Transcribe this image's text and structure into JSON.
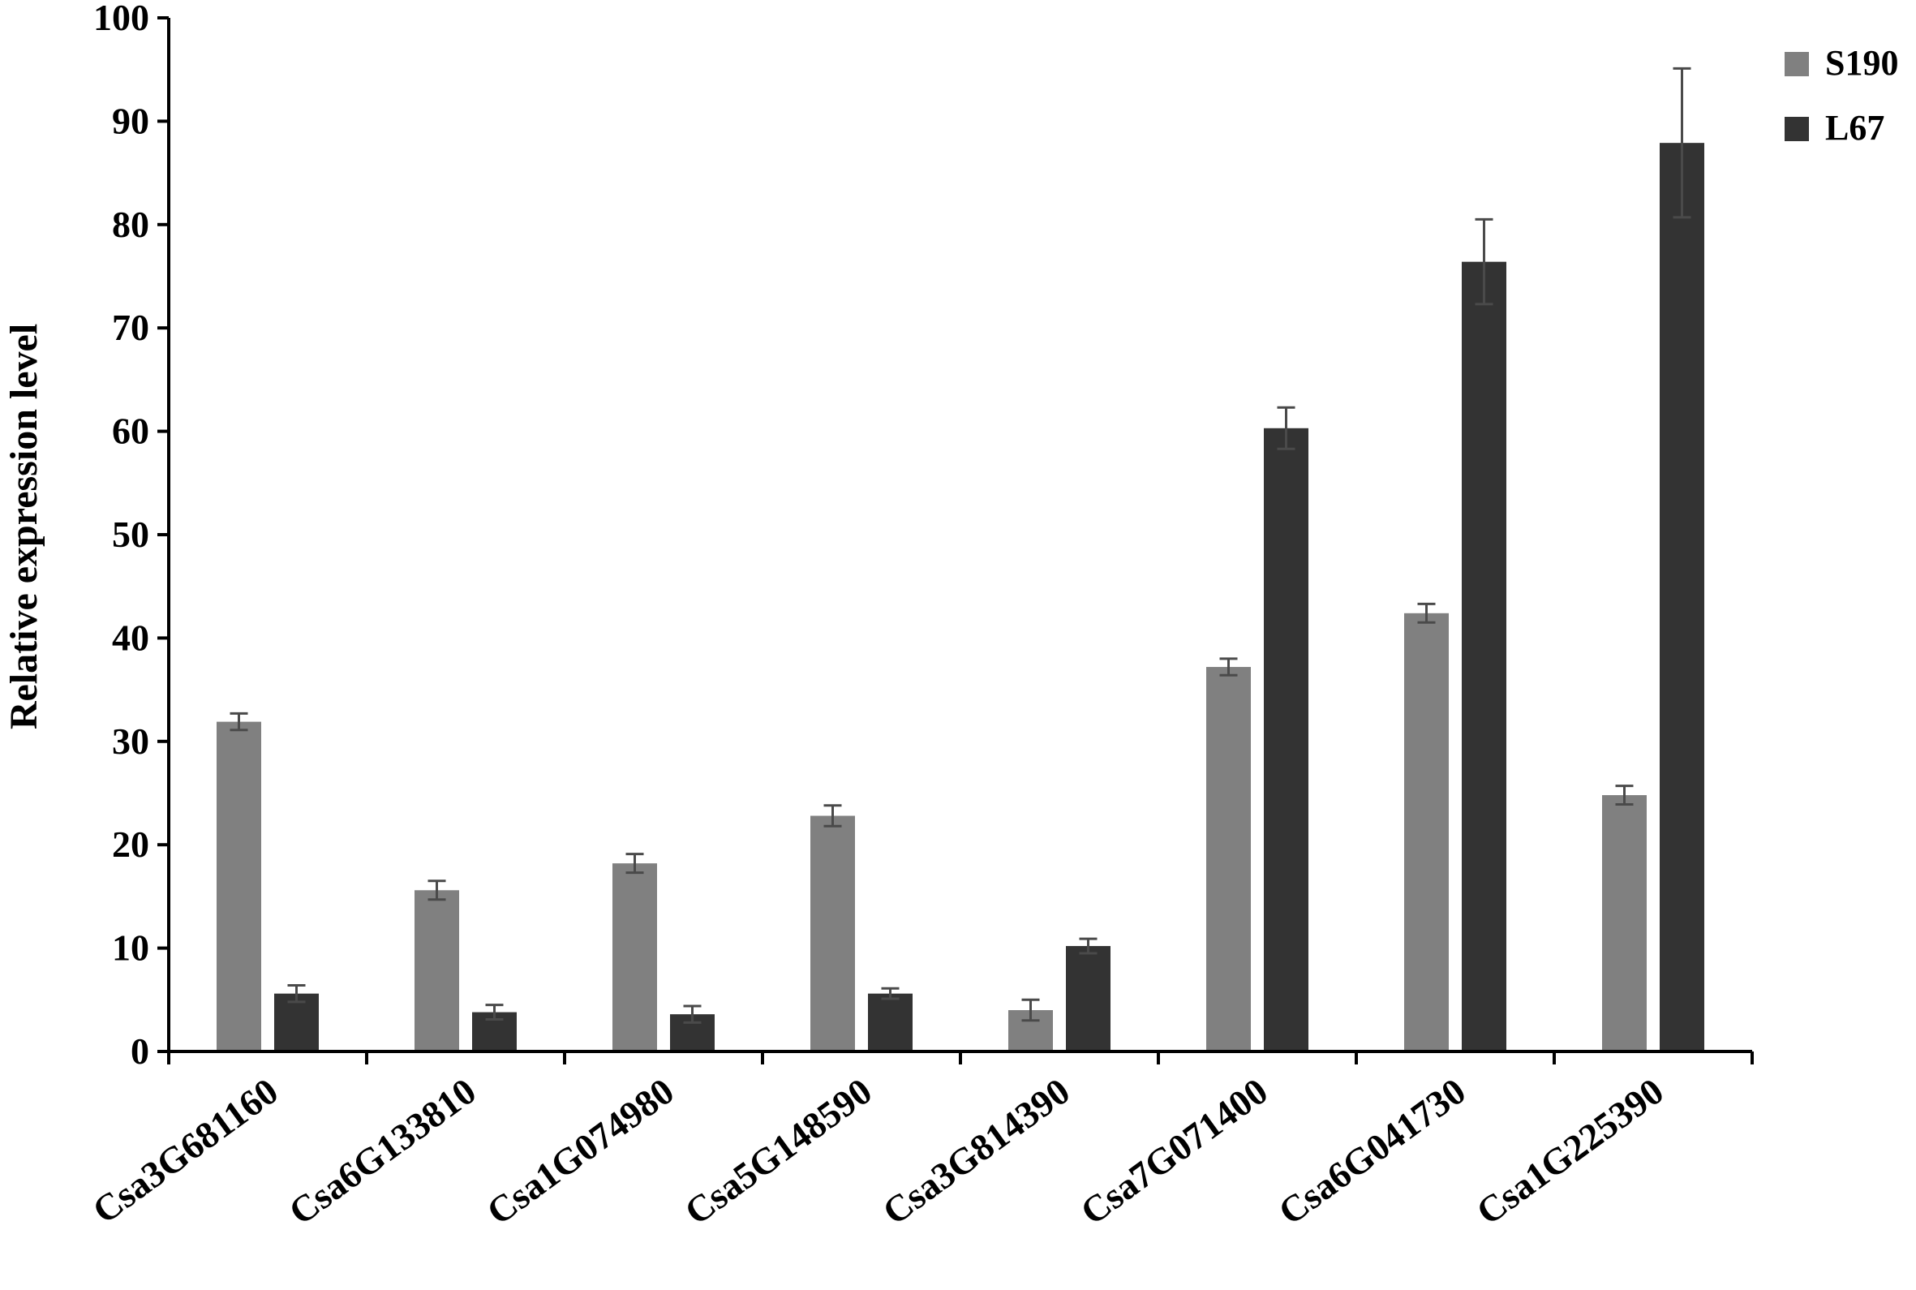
{
  "chart_data": {
    "type": "bar",
    "ylabel": "Relative expression level",
    "xlabel": "",
    "ylim": [
      0,
      100
    ],
    "yticks": [
      0,
      10,
      20,
      30,
      40,
      50,
      60,
      70,
      80,
      90,
      100
    ],
    "categories": [
      "Csa3G681160",
      "Csa6G133810",
      "Csa1G074980",
      "Csa5G148590",
      "Csa3G814390",
      "Csa7G071400",
      "Csa6G041730",
      "Csa1G225390"
    ],
    "series": [
      {
        "name": "S190",
        "color": "#808080",
        "values": [
          31.9,
          15.6,
          18.2,
          22.8,
          4.0,
          37.2,
          42.4,
          24.8
        ],
        "errors": [
          0.8,
          0.9,
          0.9,
          1.0,
          1.0,
          0.8,
          0.9,
          0.9
        ]
      },
      {
        "name": "L67",
        "color": "#333333",
        "values": [
          5.6,
          3.8,
          3.6,
          5.6,
          10.2,
          60.3,
          76.4,
          87.9
        ],
        "errors": [
          0.8,
          0.7,
          0.8,
          0.5,
          0.7,
          2.0,
          4.1,
          7.2
        ]
      }
    ],
    "legend_position": "top-right",
    "grid": false
  }
}
